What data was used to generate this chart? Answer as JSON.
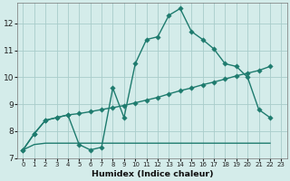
{
  "xlabel": "Humidex (Indice chaleur)",
  "background_color": "#d4ecea",
  "grid_color": "#a8ccca",
  "line_color": "#1e7b6e",
  "xlim_min": -0.5,
  "xlim_max": 23.5,
  "ylim_min": 7.0,
  "ylim_max": 12.75,
  "yticks": [
    7,
    8,
    9,
    10,
    11,
    12
  ],
  "xticks": [
    0,
    1,
    2,
    3,
    4,
    5,
    6,
    7,
    8,
    9,
    10,
    11,
    12,
    13,
    14,
    15,
    16,
    17,
    18,
    19,
    20,
    21,
    22,
    23
  ],
  "line1_x": [
    0,
    1,
    2,
    3,
    4,
    5,
    6,
    7,
    8,
    9,
    10,
    11,
    12,
    13,
    14,
    15,
    16,
    17,
    18,
    19,
    20,
    21,
    22
  ],
  "line1_y": [
    7.3,
    7.9,
    8.4,
    8.5,
    8.6,
    7.5,
    7.3,
    7.4,
    9.6,
    8.5,
    10.5,
    11.4,
    11.5,
    12.3,
    12.55,
    11.7,
    11.4,
    11.05,
    10.5,
    10.4,
    10.0,
    8.8,
    8.5
  ],
  "line2_x": [
    0,
    1,
    2,
    3,
    4,
    5,
    6,
    7,
    8,
    9,
    10,
    11,
    12,
    13,
    14,
    15,
    16,
    17,
    18,
    19,
    20,
    21,
    22
  ],
  "line2_y": [
    7.3,
    7.9,
    8.4,
    8.5,
    8.6,
    8.65,
    8.72,
    8.8,
    8.87,
    8.95,
    9.05,
    9.15,
    9.25,
    9.38,
    9.5,
    9.6,
    9.72,
    9.82,
    9.93,
    10.05,
    10.15,
    10.25,
    10.4
  ],
  "line3_x": [
    0,
    1,
    2,
    3,
    4,
    5,
    6,
    7,
    8,
    9,
    10,
    11,
    12,
    13,
    14,
    15,
    16,
    17,
    18,
    19,
    20,
    21,
    22
  ],
  "line3_y": [
    7.3,
    7.5,
    7.55,
    7.55,
    7.55,
    7.55,
    7.55,
    7.55,
    7.55,
    7.55,
    7.55,
    7.55,
    7.55,
    7.55,
    7.55,
    7.55,
    7.55,
    7.55,
    7.55,
    7.55,
    7.55,
    7.55,
    7.55
  ],
  "xtick_fontsize": 5.0,
  "ytick_fontsize": 6.5,
  "xlabel_fontsize": 6.8
}
